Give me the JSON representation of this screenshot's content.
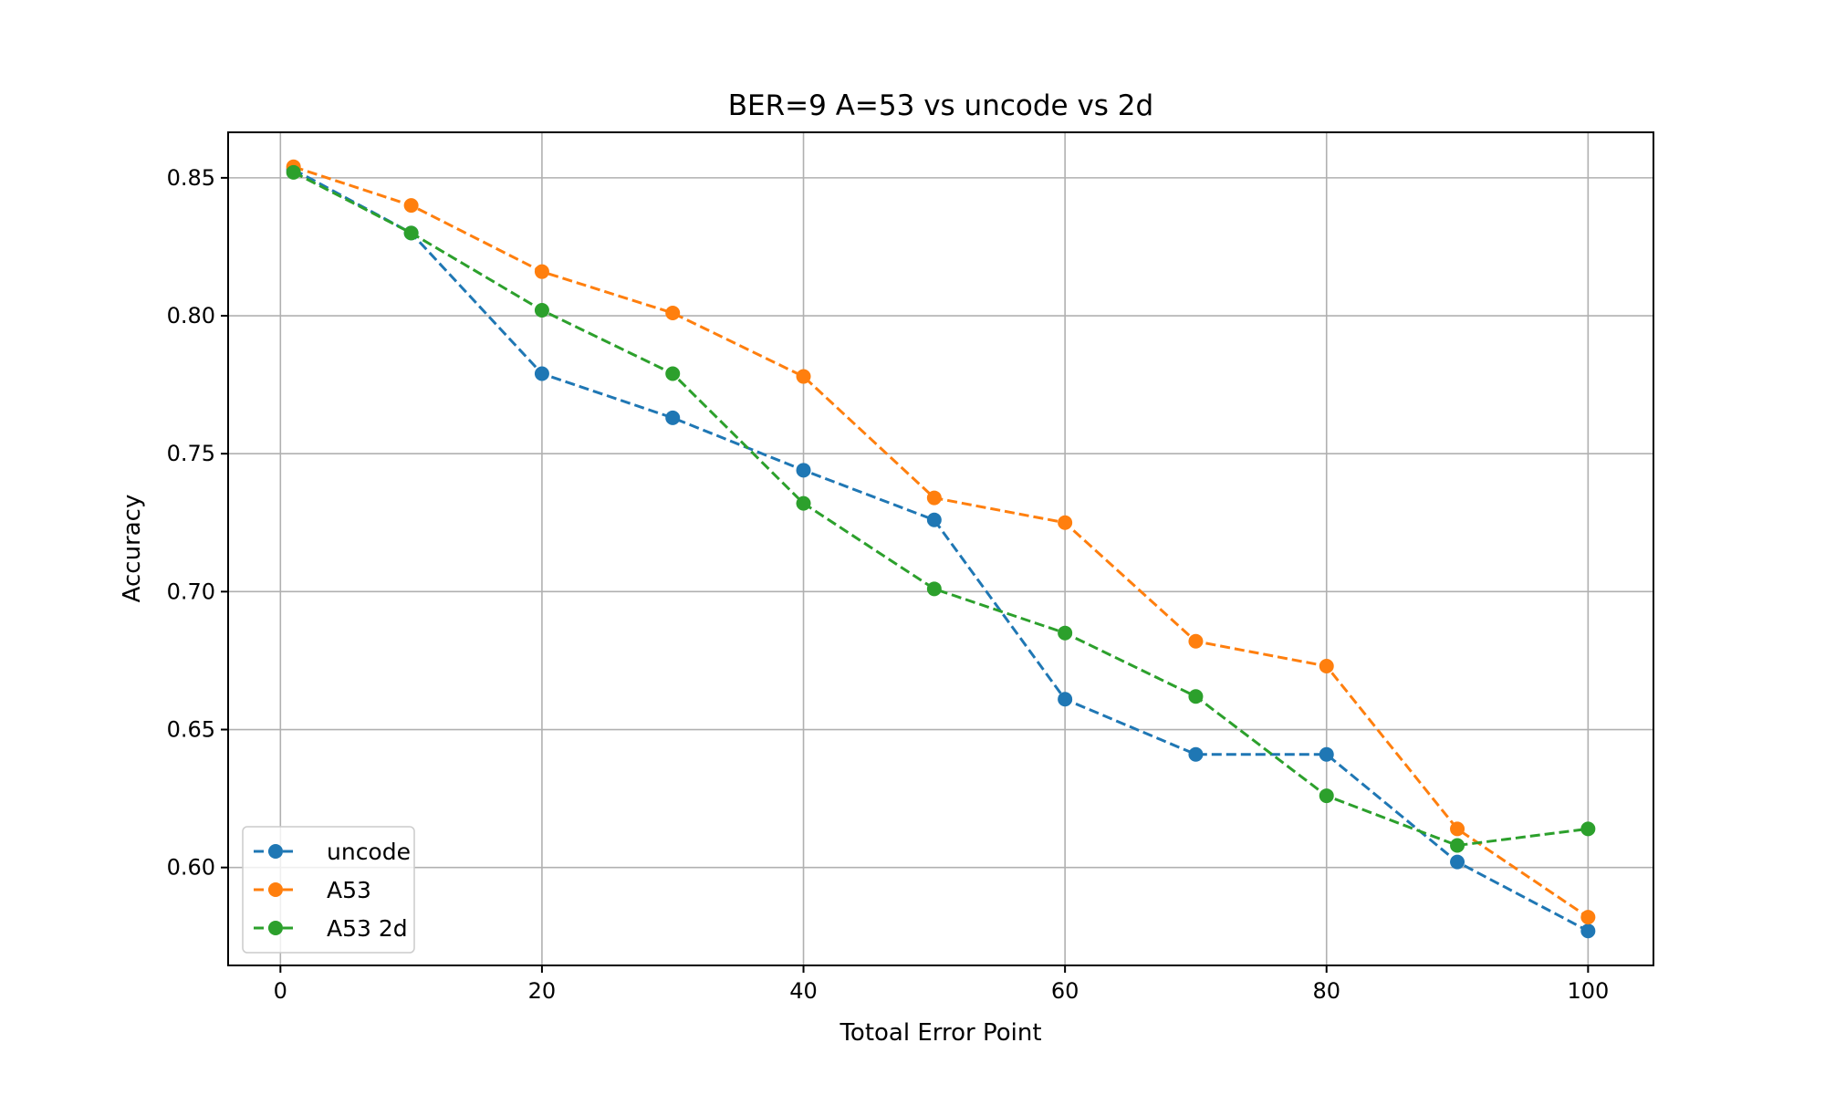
{
  "chart_data": {
    "type": "line",
    "title": "BER=9 A=53 vs uncode vs 2d",
    "xlabel": "Totoal Error Point",
    "ylabel": "Accuracy",
    "xlim": [
      -4,
      105
    ],
    "ylim": [
      0.5645,
      0.8665
    ],
    "x_ticks": [
      0,
      20,
      40,
      60,
      80,
      100
    ],
    "x_tick_labels": [
      "0",
      "20",
      "40",
      "60",
      "80",
      "100"
    ],
    "y_ticks": [
      0.6,
      0.65,
      0.7,
      0.75,
      0.8,
      0.85
    ],
    "y_tick_labels": [
      "0.60",
      "0.65",
      "0.70",
      "0.75",
      "0.80",
      "0.85"
    ],
    "grid": true,
    "legend_position": "lower-left",
    "x": [
      1,
      10,
      20,
      30,
      40,
      50,
      60,
      70,
      80,
      90,
      100
    ],
    "series": [
      {
        "name": "uncode",
        "color": "#1f77b4",
        "marker": "circle",
        "line_style": "dashed",
        "values": [
          0.853,
          0.83,
          0.779,
          0.763,
          0.744,
          0.726,
          0.661,
          0.641,
          0.641,
          0.602,
          0.577
        ]
      },
      {
        "name": "A53",
        "color": "#ff7f0e",
        "marker": "circle",
        "line_style": "dashed",
        "values": [
          0.854,
          0.84,
          0.816,
          0.801,
          0.778,
          0.734,
          0.725,
          0.682,
          0.673,
          0.614,
          0.582
        ]
      },
      {
        "name": "A53 2d",
        "color": "#2ca02c",
        "marker": "circle",
        "line_style": "dashed",
        "values": [
          0.852,
          0.83,
          0.802,
          0.779,
          0.732,
          0.701,
          0.685,
          0.662,
          0.626,
          0.608,
          0.614
        ]
      }
    ]
  }
}
